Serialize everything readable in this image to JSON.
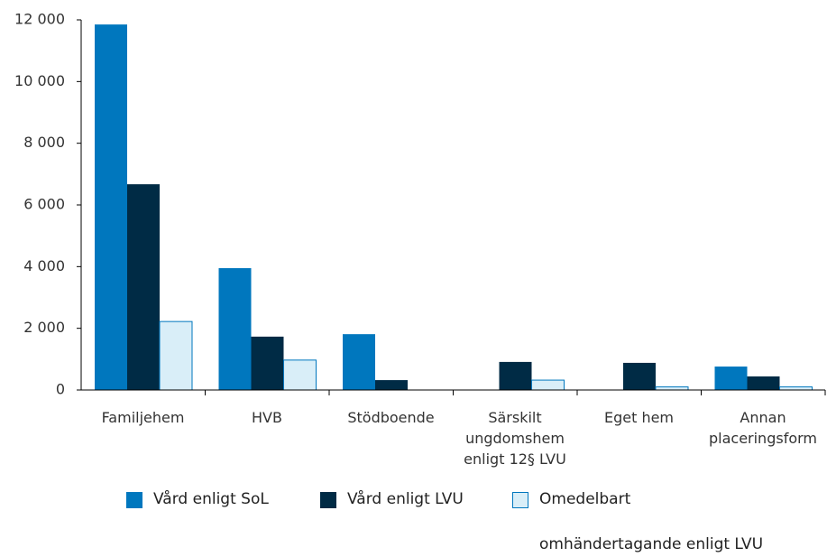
{
  "chart_data": {
    "type": "bar",
    "categories": [
      "Familjehem",
      "HVB",
      "Stödboende",
      "Särskilt\nungdomshem\nenligt 12§ LVU",
      "Eget hem",
      "Annan\nplaceringsform"
    ],
    "series": [
      {
        "name": "Vård enligt  SoL",
        "color": "#0077be",
        "values": [
          11850,
          3950,
          1810,
          0,
          0,
          760
        ]
      },
      {
        "name": "Vård enligt  LVU",
        "color": "#002b45",
        "values": [
          6670,
          1730,
          320,
          910,
          880,
          440
        ]
      },
      {
        "name": "Omedelbart\nomhändertagande  enligt  LVU",
        "color": "#d9eef8",
        "values": [
          2220,
          970,
          0,
          320,
          100,
          100
        ]
      }
    ],
    "ylim": [
      0,
      12000
    ],
    "yticks": [
      0,
      {
        "value": 2000,
        "label": "2 000"
      },
      {
        "value": 4000,
        "label": "4 000"
      },
      {
        "value": 6000,
        "label": "6 000"
      },
      {
        "value": 8000,
        "label": "8 000"
      },
      {
        "value": 10000,
        "label": "10 000"
      },
      {
        "value": 12000,
        "label": "12 000"
      }
    ],
    "grid": false
  }
}
